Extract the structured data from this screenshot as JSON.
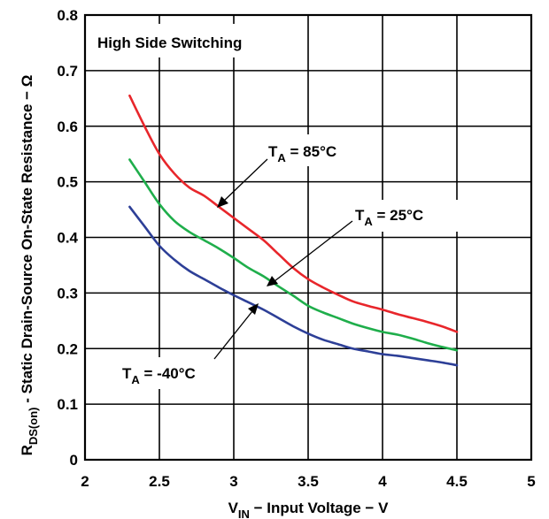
{
  "chart_data": {
    "type": "line",
    "title": "High Side Switching",
    "xlabel": {
      "main": "V",
      "sub": "IN",
      "rest": " − Input Voltage − V"
    },
    "ylabel": {
      "main": "R",
      "sub": "DS(on)",
      "rest": " - Static Drain-Source On-State Resistance  −  Ω"
    },
    "xlim": [
      2,
      5
    ],
    "ylim": [
      0,
      0.8
    ],
    "xticks": [
      "2",
      "2.5",
      "3",
      "3.5",
      "4",
      "4.5",
      "5"
    ],
    "yticks": [
      "0",
      "0.1",
      "0.2",
      "0.3",
      "0.4",
      "0.5",
      "0.6",
      "0.7",
      "0.8"
    ],
    "grid": true,
    "series": [
      {
        "name": "TA = 85°C",
        "color": "#e8262b",
        "x": [
          2.3,
          2.4,
          2.5,
          2.6,
          2.7,
          2.8,
          2.9,
          3.0,
          3.1,
          3.2,
          3.3,
          3.4,
          3.5,
          3.6,
          3.7,
          3.8,
          3.9,
          4.0,
          4.1,
          4.2,
          4.3,
          4.4,
          4.5
        ],
        "y": [
          0.655,
          0.6,
          0.55,
          0.515,
          0.49,
          0.475,
          0.455,
          0.435,
          0.415,
          0.395,
          0.37,
          0.345,
          0.325,
          0.31,
          0.297,
          0.285,
          0.277,
          0.27,
          0.262,
          0.255,
          0.248,
          0.24,
          0.23
        ]
      },
      {
        "name": "TA = 25°C",
        "color": "#1fae4b",
        "x": [
          2.3,
          2.4,
          2.5,
          2.6,
          2.7,
          2.8,
          2.9,
          3.0,
          3.1,
          3.2,
          3.3,
          3.4,
          3.5,
          3.6,
          3.7,
          3.8,
          3.9,
          4.0,
          4.1,
          4.2,
          4.3,
          4.4,
          4.5
        ],
        "y": [
          0.54,
          0.5,
          0.46,
          0.43,
          0.41,
          0.395,
          0.38,
          0.363,
          0.345,
          0.33,
          0.312,
          0.295,
          0.277,
          0.265,
          0.255,
          0.245,
          0.237,
          0.23,
          0.225,
          0.218,
          0.21,
          0.203,
          0.197
        ]
      },
      {
        "name": "TA = -40°C",
        "color": "#2d3f97",
        "x": [
          2.3,
          2.4,
          2.5,
          2.6,
          2.7,
          2.8,
          2.9,
          3.0,
          3.1,
          3.2,
          3.3,
          3.4,
          3.5,
          3.6,
          3.7,
          3.8,
          3.9,
          4.0,
          4.1,
          4.2,
          4.3,
          4.4,
          4.5
        ],
        "y": [
          0.455,
          0.42,
          0.385,
          0.36,
          0.34,
          0.325,
          0.31,
          0.296,
          0.283,
          0.27,
          0.255,
          0.24,
          0.227,
          0.216,
          0.208,
          0.2,
          0.195,
          0.19,
          0.187,
          0.183,
          0.179,
          0.175,
          0.17
        ]
      }
    ],
    "annotations": [
      {
        "main": "T",
        "sub": "A",
        "value": " = 85°C",
        "series": 0
      },
      {
        "main": "T",
        "sub": "A",
        "value": " = 25°C",
        "series": 1
      },
      {
        "main": "T",
        "sub": "A",
        "value": " = -40°C",
        "series": 2
      }
    ]
  }
}
